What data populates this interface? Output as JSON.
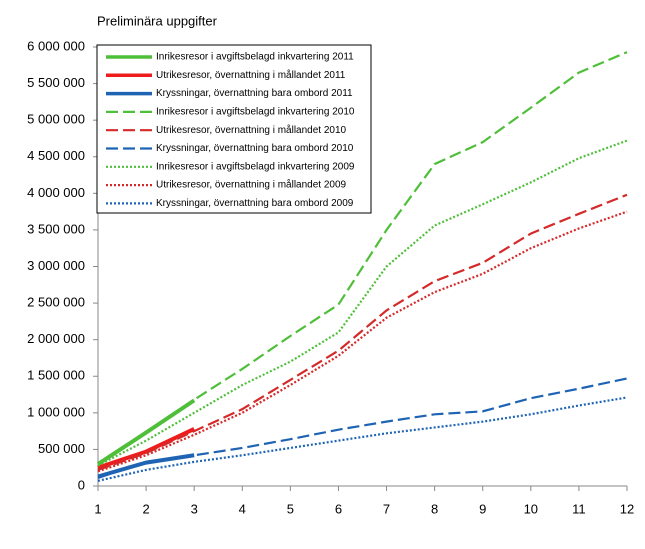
{
  "chart_data": {
    "type": "line",
    "title": "Preliminära uppgifter",
    "x": [
      1,
      2,
      3,
      4,
      5,
      6,
      7,
      8,
      9,
      10,
      11,
      12
    ],
    "xlim": [
      1,
      12
    ],
    "xticks": [
      1,
      2,
      3,
      4,
      5,
      6,
      7,
      8,
      9,
      10,
      11,
      12
    ],
    "ylim": [
      0,
      6000000
    ],
    "yticks": [
      {
        "value": 0,
        "label": "0"
      },
      {
        "value": 500000,
        "label": "500 000"
      },
      {
        "value": 1000000,
        "label": "1 000 000"
      },
      {
        "value": 1500000,
        "label": "1 500 000"
      },
      {
        "value": 2000000,
        "label": "2 000 000"
      },
      {
        "value": 2500000,
        "label": "2 500 000"
      },
      {
        "value": 3000000,
        "label": "3 000 000"
      },
      {
        "value": 3500000,
        "label": "3 500 000"
      },
      {
        "value": 4000000,
        "label": "4 000 000"
      },
      {
        "value": 4500000,
        "label": "4 500 000"
      },
      {
        "value": 5000000,
        "label": "5 000 000"
      },
      {
        "value": 5500000,
        "label": "5 500 000"
      },
      {
        "value": 6000000,
        "label": "6 000 000"
      }
    ],
    "series": [
      {
        "name": "Inrikesresor i avgiftsbelagd inkvartering 2011",
        "color": "#4fbf3a",
        "style": "solid",
        "values": [
          300000,
          730000,
          1170000,
          null,
          null,
          null,
          null,
          null,
          null,
          null,
          null,
          null
        ]
      },
      {
        "name": "Utrikesresor, övernattning i mållandet 2011",
        "color": "#ee1c1c",
        "style": "solid",
        "values": [
          250000,
          470000,
          780000,
          null,
          null,
          null,
          null,
          null,
          null,
          null,
          null,
          null
        ]
      },
      {
        "name": "Kryssningar, övernattning bara ombord 2011",
        "color": "#1f64b4",
        "style": "solid",
        "values": [
          130000,
          320000,
          420000,
          null,
          null,
          null,
          null,
          null,
          null,
          null,
          null,
          null
        ]
      },
      {
        "name": "Inrikesresor i avgiftsbelagd inkvartering 2010",
        "color": "#4fbf3a",
        "style": "dashed",
        "values": [
          290000,
          720000,
          1180000,
          1600000,
          2050000,
          2480000,
          3500000,
          4400000,
          4700000,
          5170000,
          5650000,
          5930000
        ]
      },
      {
        "name": "Utrikesresor, övernattning i mållandet 2010",
        "color": "#d42a2a",
        "style": "dashed",
        "values": [
          220000,
          450000,
          750000,
          1050000,
          1450000,
          1850000,
          2400000,
          2800000,
          3050000,
          3450000,
          3720000,
          3980000
        ]
      },
      {
        "name": "Kryssningar, övernattning bara ombord 2010",
        "color": "#1f64b4",
        "style": "dashed",
        "values": [
          110000,
          330000,
          420000,
          520000,
          640000,
          770000,
          880000,
          980000,
          1020000,
          1200000,
          1330000,
          1470000
        ]
      },
      {
        "name": "Inrikesresor i avgiftsbelagd inkvartering 2009",
        "color": "#4fbf3a",
        "style": "dotted",
        "values": [
          280000,
          620000,
          1000000,
          1380000,
          1700000,
          2100000,
          3000000,
          3560000,
          3850000,
          4150000,
          4480000,
          4720000
        ]
      },
      {
        "name": "Utrikesresor, övernattning i mållandet 2009",
        "color": "#d42a2a",
        "style": "dotted",
        "values": [
          200000,
          420000,
          700000,
          1000000,
          1380000,
          1780000,
          2300000,
          2650000,
          2900000,
          3250000,
          3520000,
          3750000
        ]
      },
      {
        "name": "Kryssningar, övernattning bara ombord 2009",
        "color": "#1f64b4",
        "style": "dotted",
        "values": [
          70000,
          220000,
          330000,
          420000,
          520000,
          620000,
          720000,
          800000,
          880000,
          980000,
          1100000,
          1210000
        ]
      }
    ]
  }
}
